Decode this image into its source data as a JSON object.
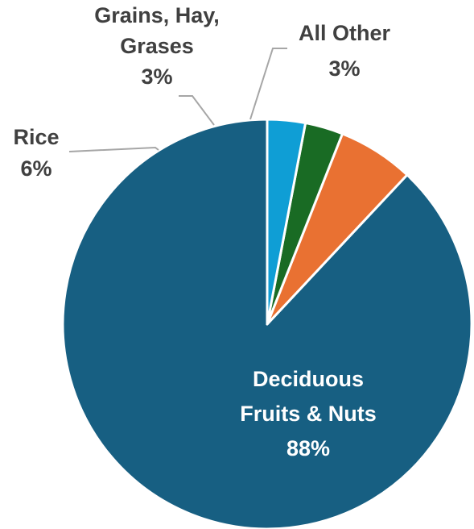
{
  "chart_data": {
    "type": "pie",
    "slices": [
      {
        "label": "Deciduous Fruits & Nuts",
        "value": 88,
        "value_label": "88%",
        "color": "#175F82",
        "label_lines": [
          "Deciduous",
          "Fruits & Nuts",
          "88%"
        ]
      },
      {
        "label": "Rice",
        "value": 6,
        "value_label": "6%",
        "color": "#E97132",
        "label_lines": [
          "Rice",
          "6%"
        ]
      },
      {
        "label": "Grains, Hay, Grases",
        "value": 3,
        "value_label": "3%",
        "color": "#196B24",
        "label_lines": [
          "Grains, Hay,",
          "Grases",
          "3%"
        ]
      },
      {
        "label": "All Other",
        "value": 3,
        "value_label": "3%",
        "color": "#0F9ED5",
        "label_lines": [
          "All Other",
          "3%"
        ]
      }
    ],
    "start_angle_deg": 0,
    "direction": "counterclockwise",
    "legend": "none"
  }
}
